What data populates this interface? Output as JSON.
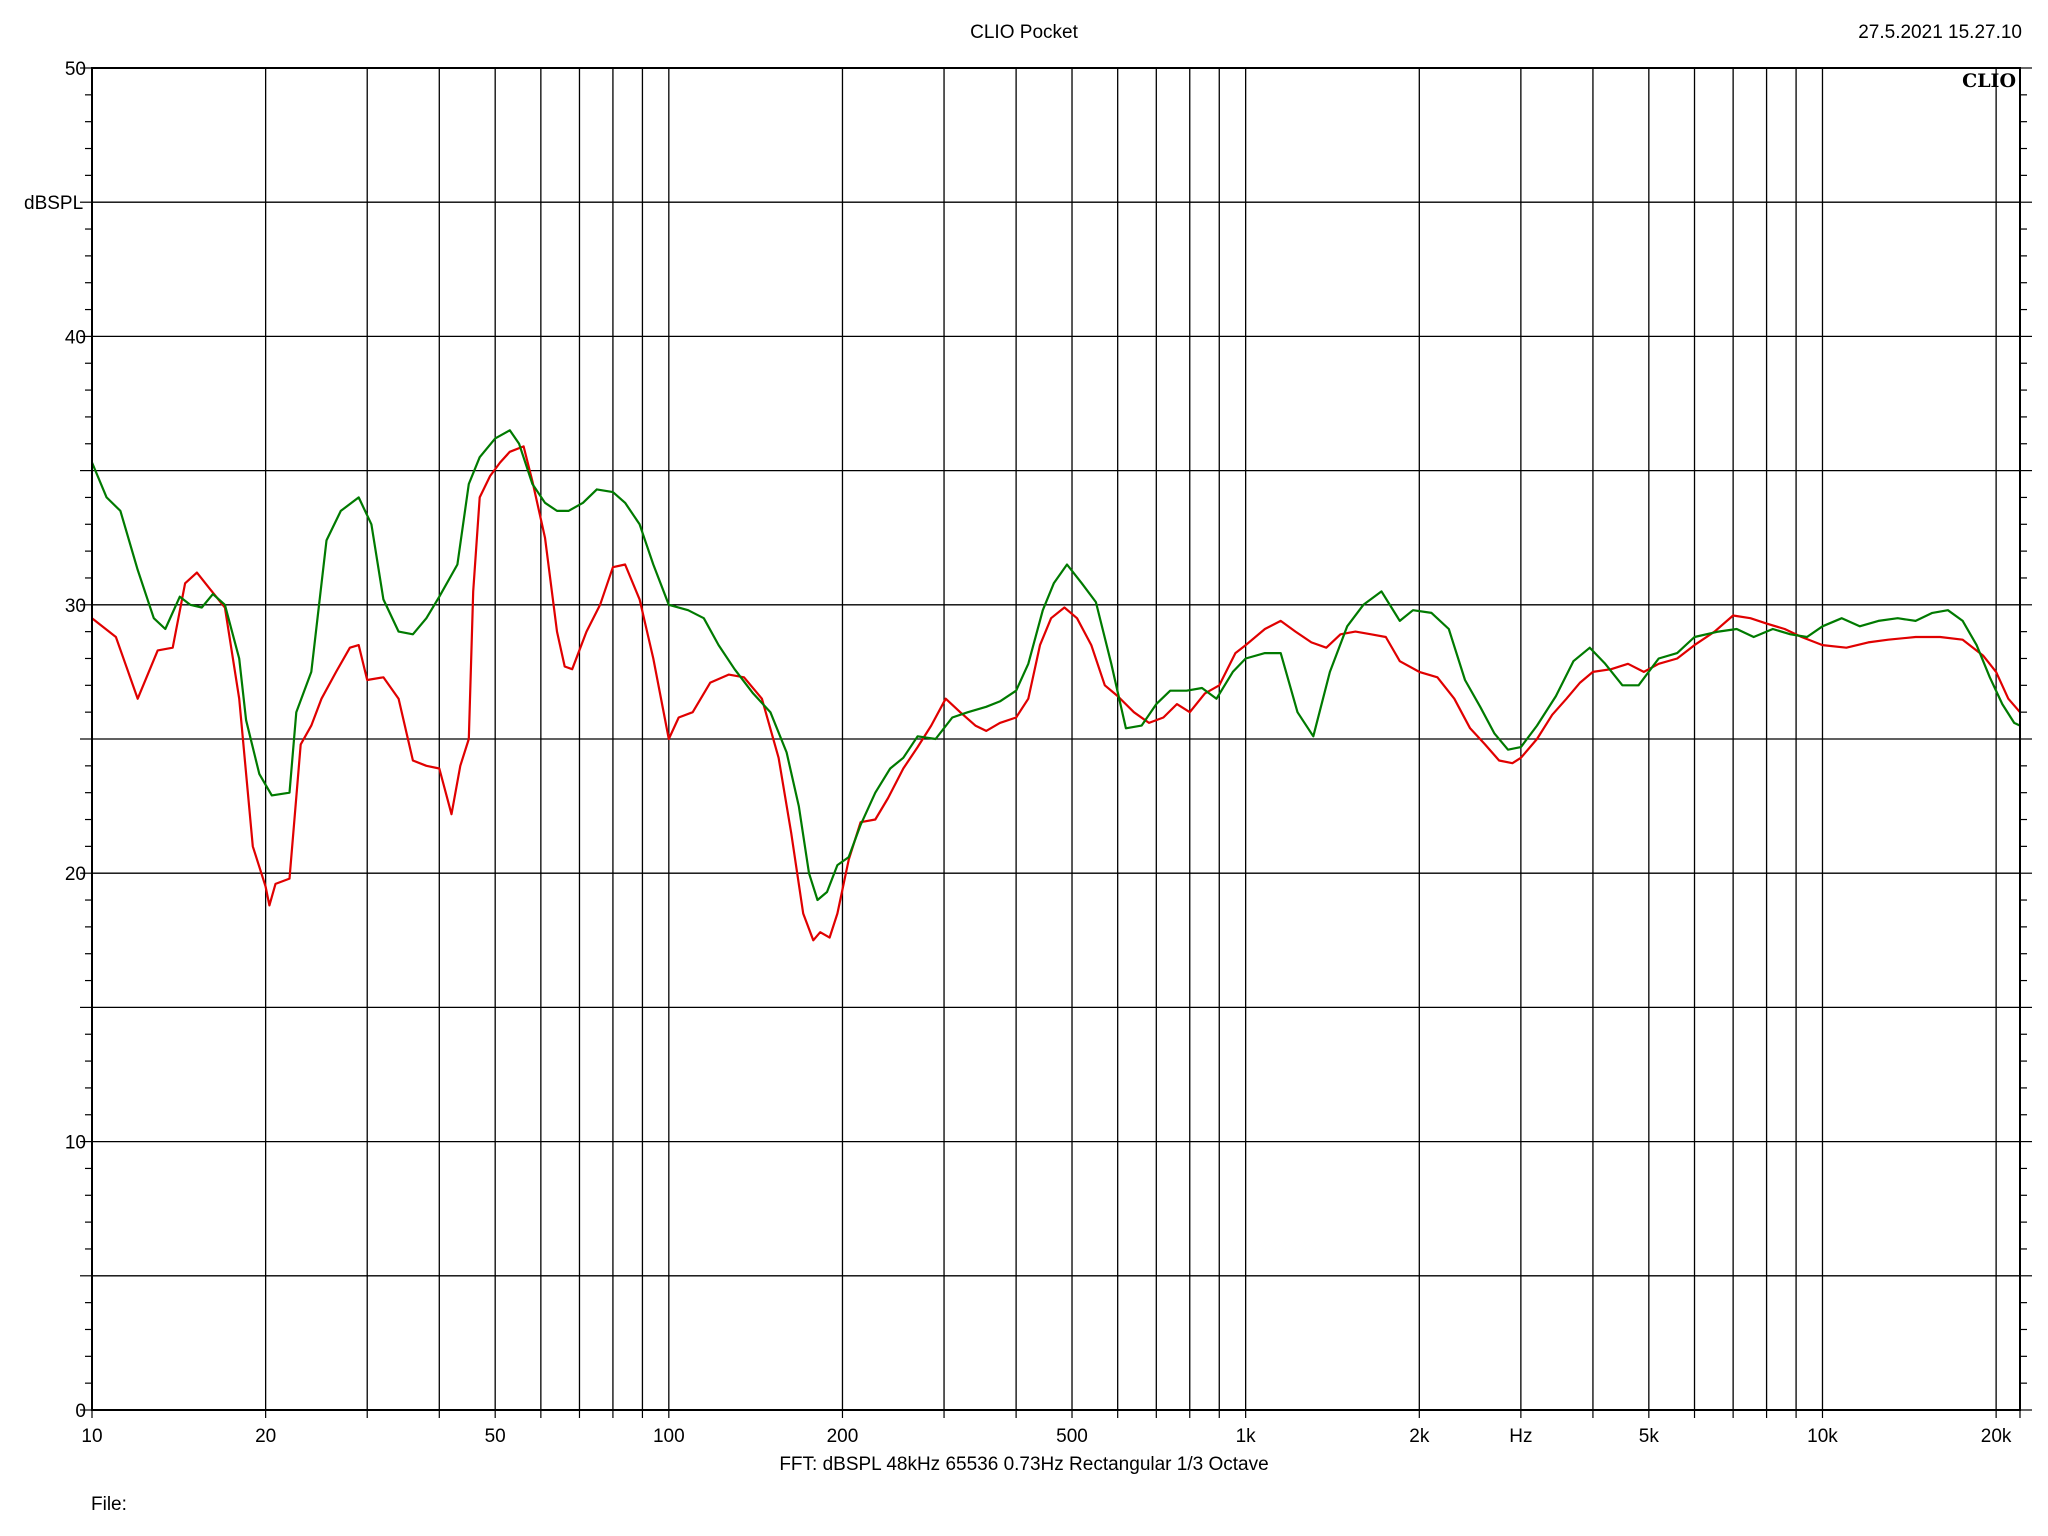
{
  "header": {
    "title": "CLIO Pocket",
    "datetime": "27.5.2021 15.27.10",
    "logo": "CLIO"
  },
  "footer": {
    "settings": "FFT:  dBSPL  48kHz   65536  0.73Hz  Rectangular  1/3 Octave",
    "file_label": "File:"
  },
  "chart_data": {
    "type": "line",
    "title": "CLIO Pocket",
    "xlabel": "Hz",
    "ylabel": "dBSPL",
    "xscale": "log",
    "xlim": [
      10,
      22000
    ],
    "ylim": [
      0,
      50
    ],
    "grid": true,
    "x_tick_labels": [
      {
        "value": 10,
        "label": "10"
      },
      {
        "value": 20,
        "label": "20"
      },
      {
        "value": 50,
        "label": "50"
      },
      {
        "value": 100,
        "label": "100"
      },
      {
        "value": 200,
        "label": "200"
      },
      {
        "value": 500,
        "label": "500"
      },
      {
        "value": 1000,
        "label": "1k"
      },
      {
        "value": 2000,
        "label": "2k"
      },
      {
        "value": 5000,
        "label": "5k"
      },
      {
        "value": 10000,
        "label": "10k"
      },
      {
        "value": 20000,
        "label": "20k"
      }
    ],
    "x_unit_label_at": 3000,
    "y_tick_labels": [
      {
        "value": 0,
        "label": "0"
      },
      {
        "value": 10,
        "label": "10"
      },
      {
        "value": 20,
        "label": "20"
      },
      {
        "value": 30,
        "label": "30"
      },
      {
        "value": 40,
        "label": "40"
      },
      {
        "value": 50,
        "label": "50"
      }
    ],
    "y_gridlines": [
      0,
      5,
      10,
      15,
      20,
      25,
      30,
      35,
      40,
      45,
      50
    ],
    "x_gridlines": [
      10,
      20,
      30,
      40,
      50,
      60,
      70,
      80,
      90,
      100,
      200,
      300,
      400,
      500,
      600,
      700,
      800,
      900,
      1000,
      2000,
      3000,
      4000,
      5000,
      6000,
      7000,
      8000,
      9000,
      10000,
      20000,
      22000
    ],
    "series": [
      {
        "color": "#e00000",
        "points": [
          [
            10,
            29.5
          ],
          [
            11,
            28.8
          ],
          [
            12,
            26.5
          ],
          [
            13,
            28.3
          ],
          [
            13.8,
            28.4
          ],
          [
            14.5,
            30.8
          ],
          [
            15.2,
            31.2
          ],
          [
            16,
            30.6
          ],
          [
            17,
            29.9
          ],
          [
            18,
            26.5
          ],
          [
            19,
            21.0
          ],
          [
            20,
            19.5
          ],
          [
            20.3,
            18.8
          ],
          [
            20.8,
            19.6
          ],
          [
            22,
            19.8
          ],
          [
            23,
            24.8
          ],
          [
            24,
            25.5
          ],
          [
            25,
            26.5
          ],
          [
            26.5,
            27.5
          ],
          [
            28,
            28.4
          ],
          [
            29,
            28.5
          ],
          [
            30,
            27.2
          ],
          [
            32,
            27.3
          ],
          [
            34,
            26.5
          ],
          [
            36,
            24.2
          ],
          [
            38,
            24.0
          ],
          [
            40,
            23.9
          ],
          [
            42,
            22.2
          ],
          [
            43.5,
            24.0
          ],
          [
            45,
            25.0
          ],
          [
            45.8,
            30.5
          ],
          [
            47,
            34.0
          ],
          [
            49,
            34.8
          ],
          [
            51,
            35.3
          ],
          [
            53,
            35.7
          ],
          [
            56,
            35.9
          ],
          [
            58,
            34.6
          ],
          [
            61,
            32.5
          ],
          [
            64,
            29.0
          ],
          [
            66,
            27.7
          ],
          [
            68,
            27.6
          ],
          [
            72,
            29.0
          ],
          [
            76,
            30.0
          ],
          [
            80,
            31.4
          ],
          [
            84,
            31.5
          ],
          [
            89,
            30.2
          ],
          [
            94,
            28.0
          ],
          [
            100,
            25.0
          ],
          [
            104,
            25.8
          ],
          [
            110,
            26.0
          ],
          [
            118,
            27.1
          ],
          [
            127,
            27.4
          ],
          [
            135,
            27.3
          ],
          [
            145,
            26.5
          ],
          [
            155,
            24.3
          ],
          [
            163,
            21.5
          ],
          [
            171,
            18.5
          ],
          [
            178,
            17.5
          ],
          [
            183,
            17.8
          ],
          [
            190,
            17.6
          ],
          [
            196,
            18.5
          ],
          [
            205,
            20.5
          ],
          [
            215,
            21.9
          ],
          [
            228,
            22.0
          ],
          [
            240,
            22.8
          ],
          [
            255,
            23.9
          ],
          [
            270,
            24.7
          ],
          [
            285,
            25.5
          ],
          [
            302,
            26.5
          ],
          [
            320,
            26.0
          ],
          [
            340,
            25.5
          ],
          [
            355,
            25.3
          ],
          [
            375,
            25.6
          ],
          [
            400,
            25.8
          ],
          [
            420,
            26.5
          ],
          [
            440,
            28.5
          ],
          [
            460,
            29.5
          ],
          [
            485,
            29.9
          ],
          [
            510,
            29.5
          ],
          [
            540,
            28.5
          ],
          [
            570,
            27.0
          ],
          [
            600,
            26.6
          ],
          [
            640,
            26.0
          ],
          [
            680,
            25.6
          ],
          [
            720,
            25.8
          ],
          [
            760,
            26.3
          ],
          [
            800,
            26.0
          ],
          [
            850,
            26.7
          ],
          [
            900,
            27.0
          ],
          [
            960,
            28.2
          ],
          [
            1000,
            28.5
          ],
          [
            1080,
            29.1
          ],
          [
            1150,
            29.4
          ],
          [
            1220,
            29.0
          ],
          [
            1300,
            28.6
          ],
          [
            1380,
            28.4
          ],
          [
            1460,
            28.9
          ],
          [
            1550,
            29.0
          ],
          [
            1650,
            28.9
          ],
          [
            1750,
            28.8
          ],
          [
            1850,
            27.9
          ],
          [
            2000,
            27.5
          ],
          [
            2150,
            27.3
          ],
          [
            2300,
            26.5
          ],
          [
            2450,
            25.4
          ],
          [
            2600,
            24.8
          ],
          [
            2750,
            24.2
          ],
          [
            2900,
            24.1
          ],
          [
            3000,
            24.3
          ],
          [
            3200,
            25.0
          ],
          [
            3400,
            25.9
          ],
          [
            3600,
            26.5
          ],
          [
            3800,
            27.1
          ],
          [
            4000,
            27.5
          ],
          [
            4300,
            27.6
          ],
          [
            4600,
            27.8
          ],
          [
            4900,
            27.5
          ],
          [
            5200,
            27.8
          ],
          [
            5600,
            28.0
          ],
          [
            6000,
            28.5
          ],
          [
            6500,
            29.0
          ],
          [
            7000,
            29.6
          ],
          [
            7500,
            29.5
          ],
          [
            8000,
            29.3
          ],
          [
            8600,
            29.1
          ],
          [
            9200,
            28.8
          ],
          [
            10000,
            28.5
          ],
          [
            11000,
            28.4
          ],
          [
            12000,
            28.6
          ],
          [
            13000,
            28.7
          ],
          [
            14500,
            28.8
          ],
          [
            16000,
            28.8
          ],
          [
            17500,
            28.7
          ],
          [
            19000,
            28.1
          ],
          [
            20000,
            27.5
          ],
          [
            21000,
            26.5
          ],
          [
            22000,
            26.0
          ]
        ]
      },
      {
        "color": "#007a00",
        "points": [
          [
            10,
            35.3
          ],
          [
            10.6,
            34.0
          ],
          [
            11.2,
            33.5
          ],
          [
            12,
            31.3
          ],
          [
            12.8,
            29.5
          ],
          [
            13.4,
            29.1
          ],
          [
            14.2,
            30.3
          ],
          [
            14.8,
            30.0
          ],
          [
            15.5,
            29.9
          ],
          [
            16.2,
            30.4
          ],
          [
            17,
            30.0
          ],
          [
            18,
            28.0
          ],
          [
            18.5,
            25.7
          ],
          [
            19.5,
            23.7
          ],
          [
            20.5,
            22.9
          ],
          [
            22,
            23.0
          ],
          [
            22.6,
            26.0
          ],
          [
            24,
            27.5
          ],
          [
            25.5,
            32.4
          ],
          [
            27,
            33.5
          ],
          [
            29,
            34.0
          ],
          [
            30.5,
            33.0
          ],
          [
            32,
            30.2
          ],
          [
            34,
            29.0
          ],
          [
            36,
            28.9
          ],
          [
            38,
            29.5
          ],
          [
            40,
            30.3
          ],
          [
            43,
            31.5
          ],
          [
            45,
            34.5
          ],
          [
            47,
            35.5
          ],
          [
            50,
            36.2
          ],
          [
            53,
            36.5
          ],
          [
            55,
            36.0
          ],
          [
            58,
            34.5
          ],
          [
            61,
            33.8
          ],
          [
            64,
            33.5
          ],
          [
            67,
            33.5
          ],
          [
            71,
            33.8
          ],
          [
            75,
            34.3
          ],
          [
            80,
            34.2
          ],
          [
            84,
            33.8
          ],
          [
            89,
            33.0
          ],
          [
            94,
            31.5
          ],
          [
            100,
            30.0
          ],
          [
            108,
            29.8
          ],
          [
            115,
            29.5
          ],
          [
            122,
            28.5
          ],
          [
            130,
            27.6
          ],
          [
            140,
            26.7
          ],
          [
            150,
            26.0
          ],
          [
            160,
            24.5
          ],
          [
            168,
            22.5
          ],
          [
            175,
            20.0
          ],
          [
            181,
            19.0
          ],
          [
            188,
            19.3
          ],
          [
            196,
            20.3
          ],
          [
            205,
            20.6
          ],
          [
            215,
            21.8
          ],
          [
            228,
            23.0
          ],
          [
            242,
            23.9
          ],
          [
            255,
            24.3
          ],
          [
            270,
            25.1
          ],
          [
            290,
            25.0
          ],
          [
            310,
            25.8
          ],
          [
            330,
            26.0
          ],
          [
            355,
            26.2
          ],
          [
            375,
            26.4
          ],
          [
            400,
            26.8
          ],
          [
            420,
            27.8
          ],
          [
            445,
            29.8
          ],
          [
            465,
            30.8
          ],
          [
            490,
            31.5
          ],
          [
            520,
            30.8
          ],
          [
            550,
            30.1
          ],
          [
            585,
            27.8
          ],
          [
            620,
            25.4
          ],
          [
            660,
            25.5
          ],
          [
            700,
            26.3
          ],
          [
            740,
            26.8
          ],
          [
            790,
            26.8
          ],
          [
            840,
            26.9
          ],
          [
            890,
            26.5
          ],
          [
            950,
            27.5
          ],
          [
            1000,
            28.0
          ],
          [
            1080,
            28.2
          ],
          [
            1150,
            28.2
          ],
          [
            1230,
            26.0
          ],
          [
            1310,
            25.1
          ],
          [
            1400,
            27.5
          ],
          [
            1500,
            29.2
          ],
          [
            1600,
            30.0
          ],
          [
            1720,
            30.5
          ],
          [
            1850,
            29.4
          ],
          [
            1950,
            29.8
          ],
          [
            2100,
            29.7
          ],
          [
            2250,
            29.1
          ],
          [
            2400,
            27.2
          ],
          [
            2550,
            26.2
          ],
          [
            2700,
            25.2
          ],
          [
            2850,
            24.6
          ],
          [
            3000,
            24.7
          ],
          [
            3200,
            25.5
          ],
          [
            3450,
            26.6
          ],
          [
            3700,
            27.9
          ],
          [
            3950,
            28.4
          ],
          [
            4200,
            27.8
          ],
          [
            4500,
            27.0
          ],
          [
            4800,
            27.0
          ],
          [
            5200,
            28.0
          ],
          [
            5600,
            28.2
          ],
          [
            6000,
            28.8
          ],
          [
            6600,
            29.0
          ],
          [
            7100,
            29.1
          ],
          [
            7600,
            28.8
          ],
          [
            8200,
            29.1
          ],
          [
            8800,
            28.9
          ],
          [
            9400,
            28.8
          ],
          [
            10000,
            29.2
          ],
          [
            10800,
            29.5
          ],
          [
            11600,
            29.2
          ],
          [
            12500,
            29.4
          ],
          [
            13500,
            29.5
          ],
          [
            14500,
            29.4
          ],
          [
            15500,
            29.7
          ],
          [
            16500,
            29.8
          ],
          [
            17500,
            29.4
          ],
          [
            18500,
            28.5
          ],
          [
            19500,
            27.3
          ],
          [
            20500,
            26.3
          ],
          [
            21500,
            25.6
          ],
          [
            22000,
            25.5
          ]
        ]
      }
    ]
  }
}
